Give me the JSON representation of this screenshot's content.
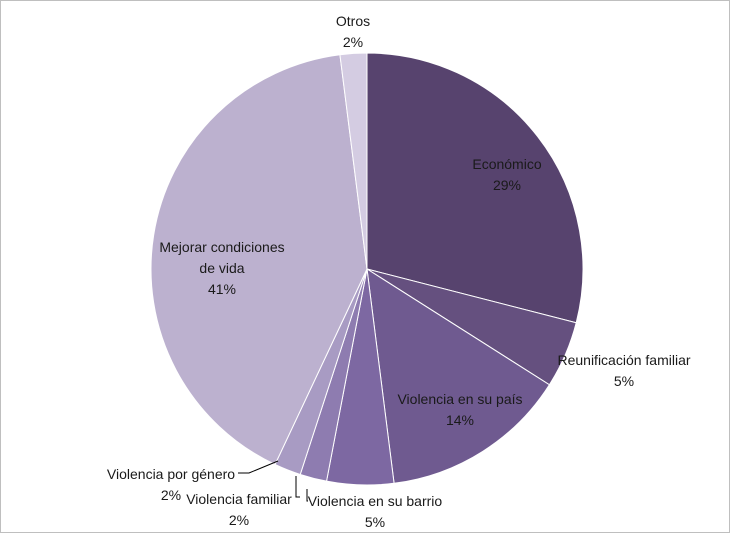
{
  "chart_data": {
    "type": "pie",
    "title": "",
    "start": "top",
    "direction": "clockwise",
    "slices": [
      {
        "label_lines": [
          "Económico"
        ],
        "label": "Económico",
        "percent_label": "29%",
        "value": 29,
        "color": "#57436e"
      },
      {
        "label_lines": [
          "Reunificación familiar"
        ],
        "label": "Reunificación familiar",
        "percent_label": "5%",
        "value": 5,
        "color": "#65507f"
      },
      {
        "label_lines": [
          "Violencia en su país"
        ],
        "label": "Violencia en su país",
        "percent_label": "14%",
        "value": 14,
        "color": "#6f5a90"
      },
      {
        "label_lines": [
          "Violencia en su barrio"
        ],
        "label": "Violencia en su barrio",
        "percent_label": "5%",
        "value": 5,
        "color": "#7d68a2"
      },
      {
        "label_lines": [
          "Violencia familiar"
        ],
        "label": "Violencia familiar",
        "percent_label": "2%",
        "value": 2,
        "color": "#8e7cb0"
      },
      {
        "label_lines": [
          "Violencia por género"
        ],
        "label": "Violencia por género",
        "percent_label": "2%",
        "value": 2,
        "color": "#a89bc3"
      },
      {
        "label_lines": [
          "Mejorar condiciones",
          "de vida"
        ],
        "label": "Mejorar condiciones de vida",
        "percent_label": "41%",
        "value": 41,
        "color": "#bcb1cf"
      },
      {
        "label_lines": [
          "Otros"
        ],
        "label": "Otros",
        "percent_label": "2%",
        "value": 2,
        "color": "#d4cce2"
      }
    ]
  }
}
